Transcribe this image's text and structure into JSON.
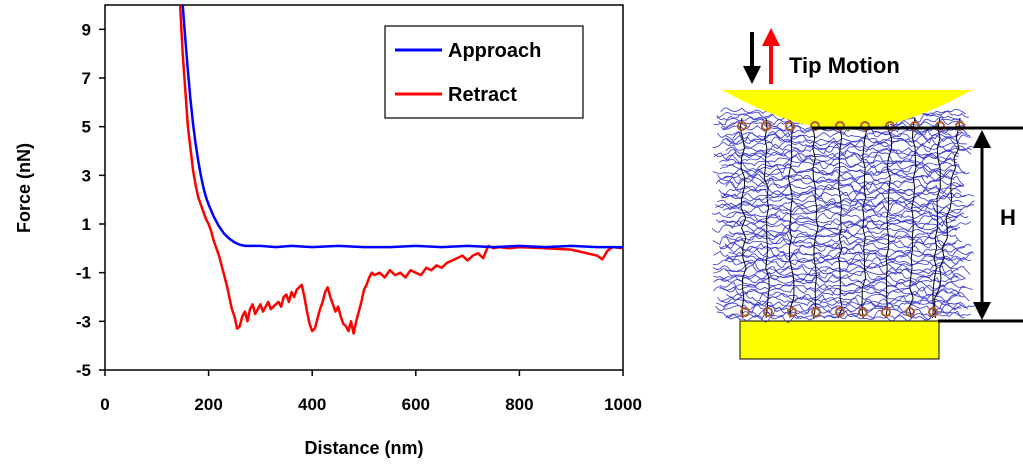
{
  "chart_data": {
    "type": "line",
    "xlabel": "Distance (nm)",
    "ylabel": "Force (nN)",
    "xlim": [
      0,
      1000
    ],
    "ylim": [
      -5,
      10
    ],
    "xticks": [
      0,
      200,
      400,
      600,
      800,
      1000
    ],
    "yticks": [
      -5,
      -3,
      -1,
      1,
      3,
      5,
      7,
      9
    ],
    "grid": false,
    "legend_position": "top-right",
    "series": [
      {
        "name": "Approach",
        "color": "#0000ff",
        "x": [
          150,
          155,
          160,
          165,
          170,
          175,
          180,
          185,
          190,
          195,
          200,
          210,
          220,
          230,
          240,
          250,
          260,
          270,
          280,
          300,
          330,
          360,
          400,
          450,
          500,
          550,
          600,
          650,
          700,
          750,
          800,
          850,
          900,
          950,
          1000
        ],
        "y": [
          10,
          8.6,
          7.3,
          6.1,
          5.1,
          4.3,
          3.6,
          3.0,
          2.5,
          2.1,
          1.8,
          1.3,
          0.9,
          0.6,
          0.4,
          0.25,
          0.15,
          0.1,
          0.1,
          0.1,
          0.05,
          0.1,
          0.05,
          0.1,
          0.05,
          0.05,
          0.1,
          0.05,
          0.1,
          0.05,
          0.1,
          0.05,
          0.1,
          0.05,
          0.05
        ]
      },
      {
        "name": "Retract",
        "color": "#ff0000",
        "x": [
          145,
          150,
          155,
          160,
          165,
          170,
          175,
          180,
          185,
          190,
          195,
          200,
          205,
          210,
          215,
          220,
          225,
          230,
          235,
          240,
          245,
          250,
          255,
          260,
          265,
          270,
          275,
          280,
          285,
          290,
          295,
          300,
          305,
          310,
          315,
          320,
          325,
          330,
          335,
          340,
          345,
          350,
          355,
          360,
          365,
          370,
          375,
          380,
          385,
          390,
          395,
          400,
          405,
          410,
          415,
          420,
          425,
          430,
          435,
          440,
          445,
          450,
          455,
          460,
          465,
          470,
          475,
          480,
          485,
          490,
          495,
          500,
          505,
          510,
          515,
          520,
          530,
          540,
          550,
          560,
          570,
          580,
          590,
          600,
          610,
          620,
          630,
          640,
          650,
          660,
          670,
          680,
          690,
          700,
          710,
          720,
          730,
          740,
          750,
          760,
          780,
          800,
          850,
          900,
          930,
          950,
          960,
          970,
          980,
          1000
        ],
        "y": [
          10,
          8.0,
          6.5,
          5.0,
          4.1,
          3.2,
          2.6,
          2.1,
          1.8,
          1.5,
          1.2,
          1.0,
          0.7,
          0.3,
          0.0,
          -0.3,
          -0.7,
          -1.1,
          -1.5,
          -2.0,
          -2.5,
          -2.8,
          -3.3,
          -3.2,
          -2.8,
          -2.6,
          -3.0,
          -2.5,
          -2.3,
          -2.7,
          -2.5,
          -2.3,
          -2.6,
          -2.4,
          -2.2,
          -2.5,
          -2.4,
          -2.3,
          -2.2,
          -2.4,
          -2.0,
          -1.9,
          -2.2,
          -1.8,
          -2.0,
          -1.7,
          -1.6,
          -1.5,
          -2.0,
          -2.6,
          -3.1,
          -3.4,
          -3.3,
          -2.9,
          -2.5,
          -2.2,
          -1.8,
          -1.6,
          -2.0,
          -2.3,
          -2.6,
          -2.4,
          -2.8,
          -3.1,
          -3.2,
          -3.4,
          -3.0,
          -3.5,
          -3.0,
          -2.6,
          -2.2,
          -1.7,
          -1.5,
          -1.2,
          -1.0,
          -1.1,
          -1.0,
          -1.2,
          -0.9,
          -1.1,
          -1.0,
          -1.2,
          -0.9,
          -1.0,
          -1.1,
          -0.8,
          -0.9,
          -0.7,
          -0.8,
          -0.6,
          -0.5,
          -0.4,
          -0.3,
          -0.5,
          -0.3,
          -0.2,
          -0.4,
          0.1,
          0.0,
          0.05,
          0.0,
          0.05,
          0.0,
          -0.05,
          -0.2,
          -0.3,
          -0.45,
          -0.1,
          0.05,
          0.0
        ]
      }
    ]
  },
  "schematic": {
    "label_motion": "Tip Motion",
    "label_height": "H",
    "colors": {
      "tip": "#ffff00",
      "substrate": "#ffff00",
      "brush": "#3333cc",
      "chain": "#000000",
      "anchor": "#b05a2a",
      "arrow_down": "#000000",
      "arrow_up": "#ff0000"
    }
  }
}
